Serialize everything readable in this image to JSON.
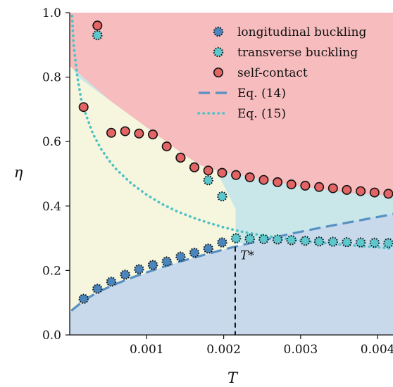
{
  "chart_data": {
    "type": "scatter",
    "xlabel": "T",
    "ylabel": "η",
    "xlim": [
      0,
      0.0042
    ],
    "ylim": [
      0,
      1.0
    ],
    "x_ticks": [
      0.001,
      0.002,
      0.003,
      0.004
    ],
    "x_tick_labels": [
      "0.001",
      "0.002",
      "0.003",
      "0.004"
    ],
    "y_ticks": [
      0.0,
      0.2,
      0.4,
      0.6,
      0.8,
      1.0
    ],
    "y_tick_labels": [
      "0.0",
      "0.2",
      "0.4",
      "0.6",
      "0.8",
      "1.0"
    ],
    "grid": false,
    "legend_position": "top-right",
    "colors": {
      "longitudinal": "#4a86bd",
      "transverse": "#5cc7cd",
      "self_contact": "#e26464",
      "eq14": "#5690c2",
      "eq15": "#4fc2c6",
      "region_self_contact": "#f6bcbe",
      "region_transverse": "#c9e7e8",
      "region_longitudinal": "#c8d9ec",
      "region_unbuckled": "#f5f6dd"
    },
    "series": [
      {
        "name": "longitudinal buckling",
        "marker": "dotted-circle",
        "color": "#4a86bd",
        "x": [
          0.00018,
          0.00036,
          0.00054,
          0.00072,
          0.0009,
          0.00108,
          0.00126,
          0.00144,
          0.00162,
          0.0018,
          0.00198
        ],
        "y": [
          0.112,
          0.143,
          0.165,
          0.187,
          0.204,
          0.217,
          0.228,
          0.243,
          0.255,
          0.268,
          0.287
        ]
      },
      {
        "name": "transverse buckling",
        "marker": "dotted-circle",
        "color": "#5cc7cd",
        "x": [
          0.00036,
          0.00144,
          0.00162,
          0.0018,
          0.00198,
          0.00216,
          0.00234,
          0.00252,
          0.0027,
          0.00288,
          0.00306,
          0.00324,
          0.00342,
          0.0036,
          0.00378,
          0.00396,
          0.00414
        ],
        "y": [
          0.93,
          0.55,
          0.52,
          0.48,
          0.43,
          0.3,
          0.298,
          0.297,
          0.296,
          0.294,
          0.292,
          0.29,
          0.289,
          0.288,
          0.287,
          0.286,
          0.285
        ]
      },
      {
        "name": "self-contact",
        "marker": "solid-circle",
        "color": "#e26464",
        "x": [
          0.00036,
          0.00018,
          0.00054,
          0.00072,
          0.0009,
          0.00108,
          0.00126,
          0.00144,
          0.00162,
          0.0018,
          0.00198,
          0.00216,
          0.00234,
          0.00252,
          0.0027,
          0.00288,
          0.00306,
          0.00324,
          0.00342,
          0.0036,
          0.00378,
          0.00396,
          0.00414
        ],
        "y": [
          0.96,
          0.707,
          0.627,
          0.632,
          0.625,
          0.622,
          0.585,
          0.55,
          0.52,
          0.51,
          0.503,
          0.496,
          0.489,
          0.481,
          0.474,
          0.467,
          0.463,
          0.459,
          0.455,
          0.45,
          0.446,
          0.442,
          0.438
        ]
      },
      {
        "name": "Eq. (14)",
        "style": "dashed",
        "color": "#5690c2",
        "x": [
          2e-05,
          0.0002,
          0.0004,
          0.0006,
          0.0008,
          0.001,
          0.0012,
          0.0014,
          0.0016,
          0.0018,
          0.002,
          0.0022,
          0.0024,
          0.0026,
          0.0028,
          0.003,
          0.0032,
          0.0034,
          0.0036,
          0.0038,
          0.004,
          0.0042
        ],
        "y": [
          0.075,
          0.11,
          0.137,
          0.158,
          0.177,
          0.194,
          0.21,
          0.225,
          0.239,
          0.252,
          0.265,
          0.277,
          0.288,
          0.299,
          0.31,
          0.32,
          0.33,
          0.339,
          0.348,
          0.357,
          0.366,
          0.375
        ]
      },
      {
        "name": "Eq. (15)",
        "style": "dotted",
        "color": "#4fc2c6",
        "x": [
          3e-05,
          5e-05,
          0.0001,
          0.00015,
          0.0002,
          0.0003,
          0.0004,
          0.0005,
          0.0006,
          0.0008,
          0.001,
          0.0012,
          0.0014,
          0.0016,
          0.0018,
          0.002,
          0.0022,
          0.0025,
          0.003,
          0.0035,
          0.004,
          0.0042
        ],
        "y": [
          0.99,
          0.9,
          0.8,
          0.73,
          0.69,
          0.625,
          0.58,
          0.545,
          0.515,
          0.47,
          0.435,
          0.406,
          0.383,
          0.364,
          0.348,
          0.334,
          0.322,
          0.309,
          0.292,
          0.281,
          0.272,
          0.268
        ]
      }
    ],
    "regions": [
      {
        "name": "self-contact region",
        "color": "#f6bcbe",
        "polygon": [
          [
            0,
            1.0
          ],
          [
            0.0042,
            1.0
          ],
          [
            0.0042,
            0.43
          ],
          [
            0.0036,
            0.44
          ],
          [
            0.003,
            0.46
          ],
          [
            0.0026,
            0.477
          ],
          [
            0.0022,
            0.495
          ],
          [
            0.0019,
            0.51
          ],
          [
            0.0017,
            0.525
          ],
          [
            0.0015,
            0.555
          ],
          [
            0.0013,
            0.59
          ],
          [
            0.0011,
            0.625
          ],
          [
            0.0009,
            0.66
          ],
          [
            0.0007,
            0.695
          ],
          [
            0.0005,
            0.73
          ],
          [
            0.0003,
            0.765
          ],
          [
            0.0001,
            0.8
          ],
          [
            2e-05,
            0.83
          ],
          [
            0,
            0.83
          ]
        ]
      },
      {
        "name": "transverse region",
        "color": "#c9e7e8",
        "polygon": [
          [
            0.00215,
            0.39
          ],
          [
            0.00215,
            0.282
          ],
          [
            0.0024,
            0.288
          ],
          [
            0.0026,
            0.299
          ],
          [
            0.0028,
            0.31
          ],
          [
            0.003,
            0.32
          ],
          [
            0.0032,
            0.33
          ],
          [
            0.0034,
            0.339
          ],
          [
            0.0036,
            0.348
          ],
          [
            0.0038,
            0.357
          ],
          [
            0.004,
            0.366
          ],
          [
            0.0042,
            0.375
          ],
          [
            0.0042,
            0.43
          ],
          [
            0.0036,
            0.44
          ],
          [
            0.003,
            0.46
          ],
          [
            0.0026,
            0.477
          ],
          [
            0.0022,
            0.495
          ],
          [
            0.0019,
            0.51
          ],
          [
            0.0017,
            0.525
          ],
          [
            0.0015,
            0.555
          ],
          [
            0.0013,
            0.59
          ],
          [
            0.0011,
            0.625
          ],
          [
            0.0009,
            0.66
          ],
          [
            0.0007,
            0.695
          ],
          [
            0.0005,
            0.73
          ],
          [
            0.0003,
            0.765
          ],
          [
            0.0001,
            0.8
          ],
          [
            2e-05,
            0.83
          ]
        ]
      },
      {
        "name": "longitudinal region",
        "color": "#c8d9ec",
        "polygon": [
          [
            0,
            0.0
          ],
          [
            0.0042,
            0.0
          ],
          [
            0.0042,
            0.375
          ],
          [
            0.004,
            0.366
          ],
          [
            0.0038,
            0.357
          ],
          [
            0.0036,
            0.348
          ],
          [
            0.0034,
            0.339
          ],
          [
            0.0032,
            0.33
          ],
          [
            0.003,
            0.32
          ],
          [
            0.0028,
            0.31
          ],
          [
            0.0026,
            0.299
          ],
          [
            0.0024,
            0.288
          ],
          [
            0.0022,
            0.277
          ],
          [
            0.002,
            0.265
          ],
          [
            0.0018,
            0.252
          ],
          [
            0.0016,
            0.239
          ],
          [
            0.0014,
            0.225
          ],
          [
            0.0012,
            0.21
          ],
          [
            0.001,
            0.194
          ],
          [
            0.0008,
            0.177
          ],
          [
            0.0006,
            0.158
          ],
          [
            0.0004,
            0.137
          ],
          [
            0.0002,
            0.11
          ],
          [
            2e-05,
            0.075
          ],
          [
            0,
            0.07
          ]
        ]
      },
      {
        "name": "unbuckled region",
        "color": "#f5f6dd",
        "polygon": [
          [
            0,
            0.83
          ],
          [
            2e-05,
            0.83
          ],
          [
            0.0001,
            0.8
          ],
          [
            0.0003,
            0.765
          ],
          [
            0.0005,
            0.73
          ],
          [
            0.0007,
            0.695
          ],
          [
            0.0009,
            0.66
          ],
          [
            0.0011,
            0.625
          ],
          [
            0.0013,
            0.59
          ],
          [
            0.0015,
            0.555
          ],
          [
            0.0017,
            0.525
          ],
          [
            0.0019,
            0.51
          ],
          [
            0.00215,
            0.39
          ],
          [
            0.00215,
            0.282
          ],
          [
            0.002,
            0.265
          ],
          [
            0.0018,
            0.252
          ],
          [
            0.0016,
            0.239
          ],
          [
            0.0014,
            0.225
          ],
          [
            0.0012,
            0.21
          ],
          [
            0.001,
            0.194
          ],
          [
            0.0008,
            0.177
          ],
          [
            0.0006,
            0.158
          ],
          [
            0.0004,
            0.137
          ],
          [
            0.0002,
            0.11
          ],
          [
            2e-05,
            0.075
          ],
          [
            0,
            0.07
          ]
        ]
      }
    ],
    "threshold": {
      "label": "T*",
      "x": 0.00215,
      "y_top": 0.3
    }
  }
}
